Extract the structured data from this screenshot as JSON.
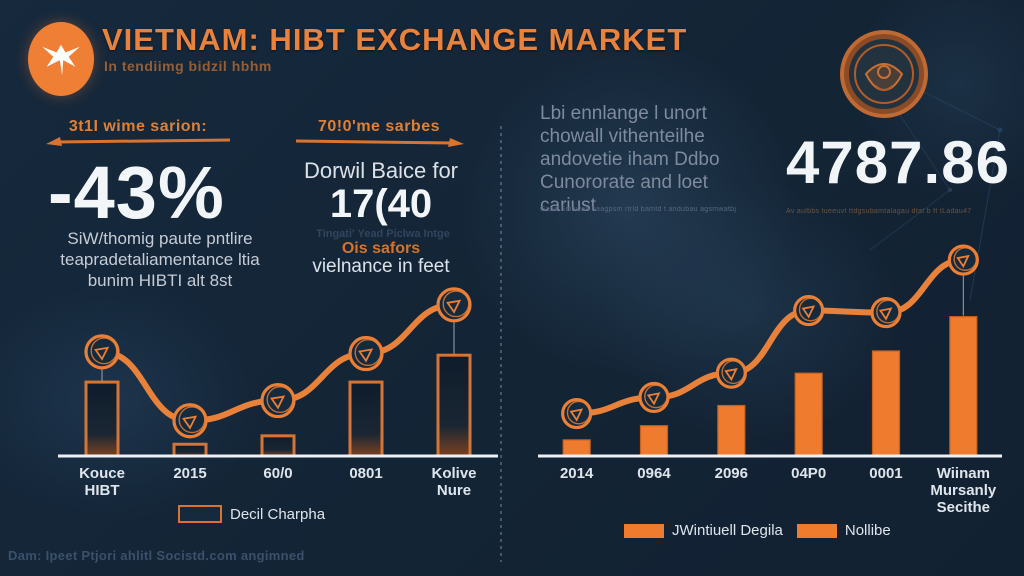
{
  "header": {
    "title": "VIETNAM: HIBT EXCHANGE MARKET",
    "subtitle": "In tendiimg bidzil hbhm"
  },
  "stats": {
    "left": {
      "heading": "3t1I wime sarion:",
      "value": "-43%",
      "description_lines": [
        "SiW/thomig paute pntlire",
        "teapradetaliamentance ltia",
        "bunim HIBTI alt 8st"
      ]
    },
    "middle": {
      "heading": "70!0'me sarbes",
      "line1": "Dorwil Baice for",
      "value": "17(40",
      "small_line": "Tingati' Yead Piclwa Intge",
      "accent_line": "Ois safors",
      "line2": "vielnance in feet"
    }
  },
  "right_panel": {
    "paragraph_lines": [
      "Lbi ennlange l unort",
      "chowall vithenteilhe",
      "andovetie iham Ddbo",
      "Cunororate and loet",
      "cariust"
    ],
    "tiny_caption": "Gaad Smawaa baagpsm rtrld bamtd t andubau agsmwatbj",
    "big_number": "4787.86",
    "number_caption": "Av aulbbs tueeuvt ttdgsubamtalagau dtat b ft tLadau47"
  },
  "footer": {
    "note": "Dam: Ipeet Ptjori ahlitl Socistd.com angimned"
  },
  "colors": {
    "background": "#14273a",
    "accent_orange": "#e8823c",
    "bar_solid": "#ee7b2e",
    "bar_outline_stroke": "#d9732f",
    "line_stroke": "#e8823a",
    "white_text": "#f3f6f9",
    "gray_text": "#7e8a9d",
    "baseline": "#eef1f5"
  },
  "chart_data": [
    {
      "type": "bar",
      "title": "",
      "categories": [
        "Kouce\nHIBT",
        "2015",
        "60/0",
        "0801",
        "Kolive\nNure"
      ],
      "series": [
        {
          "name": "Decil Charpha",
          "type": "bar",
          "values": [
            44,
            7,
            12,
            44,
            60
          ]
        },
        {
          "name": "coin-trend-line",
          "type": "line",
          "values": [
            62,
            21,
            33,
            61,
            90
          ]
        }
      ],
      "ylim": [
        0,
        100
      ],
      "grid": false,
      "legend_position": "bottom",
      "bar_style": "outline",
      "connectors": [
        0,
        4
      ]
    },
    {
      "type": "bar",
      "title": "",
      "categories": [
        "2014",
        "0964",
        "2096",
        "04P0",
        "0001",
        "Wiinam\nMursanly\nSecithe"
      ],
      "series": [
        {
          "name": "JWintiuell Degila",
          "type": "bar",
          "values": [
            8,
            15,
            25,
            41,
            52,
            69
          ]
        },
        {
          "name": "Nollibe",
          "type": "line",
          "values": [
            21,
            29,
            41,
            72,
            71,
            97
          ]
        }
      ],
      "ylim": [
        0,
        100
      ],
      "grid": false,
      "legend_position": "bottom",
      "bar_style": "solid",
      "connectors": [
        5
      ]
    }
  ]
}
